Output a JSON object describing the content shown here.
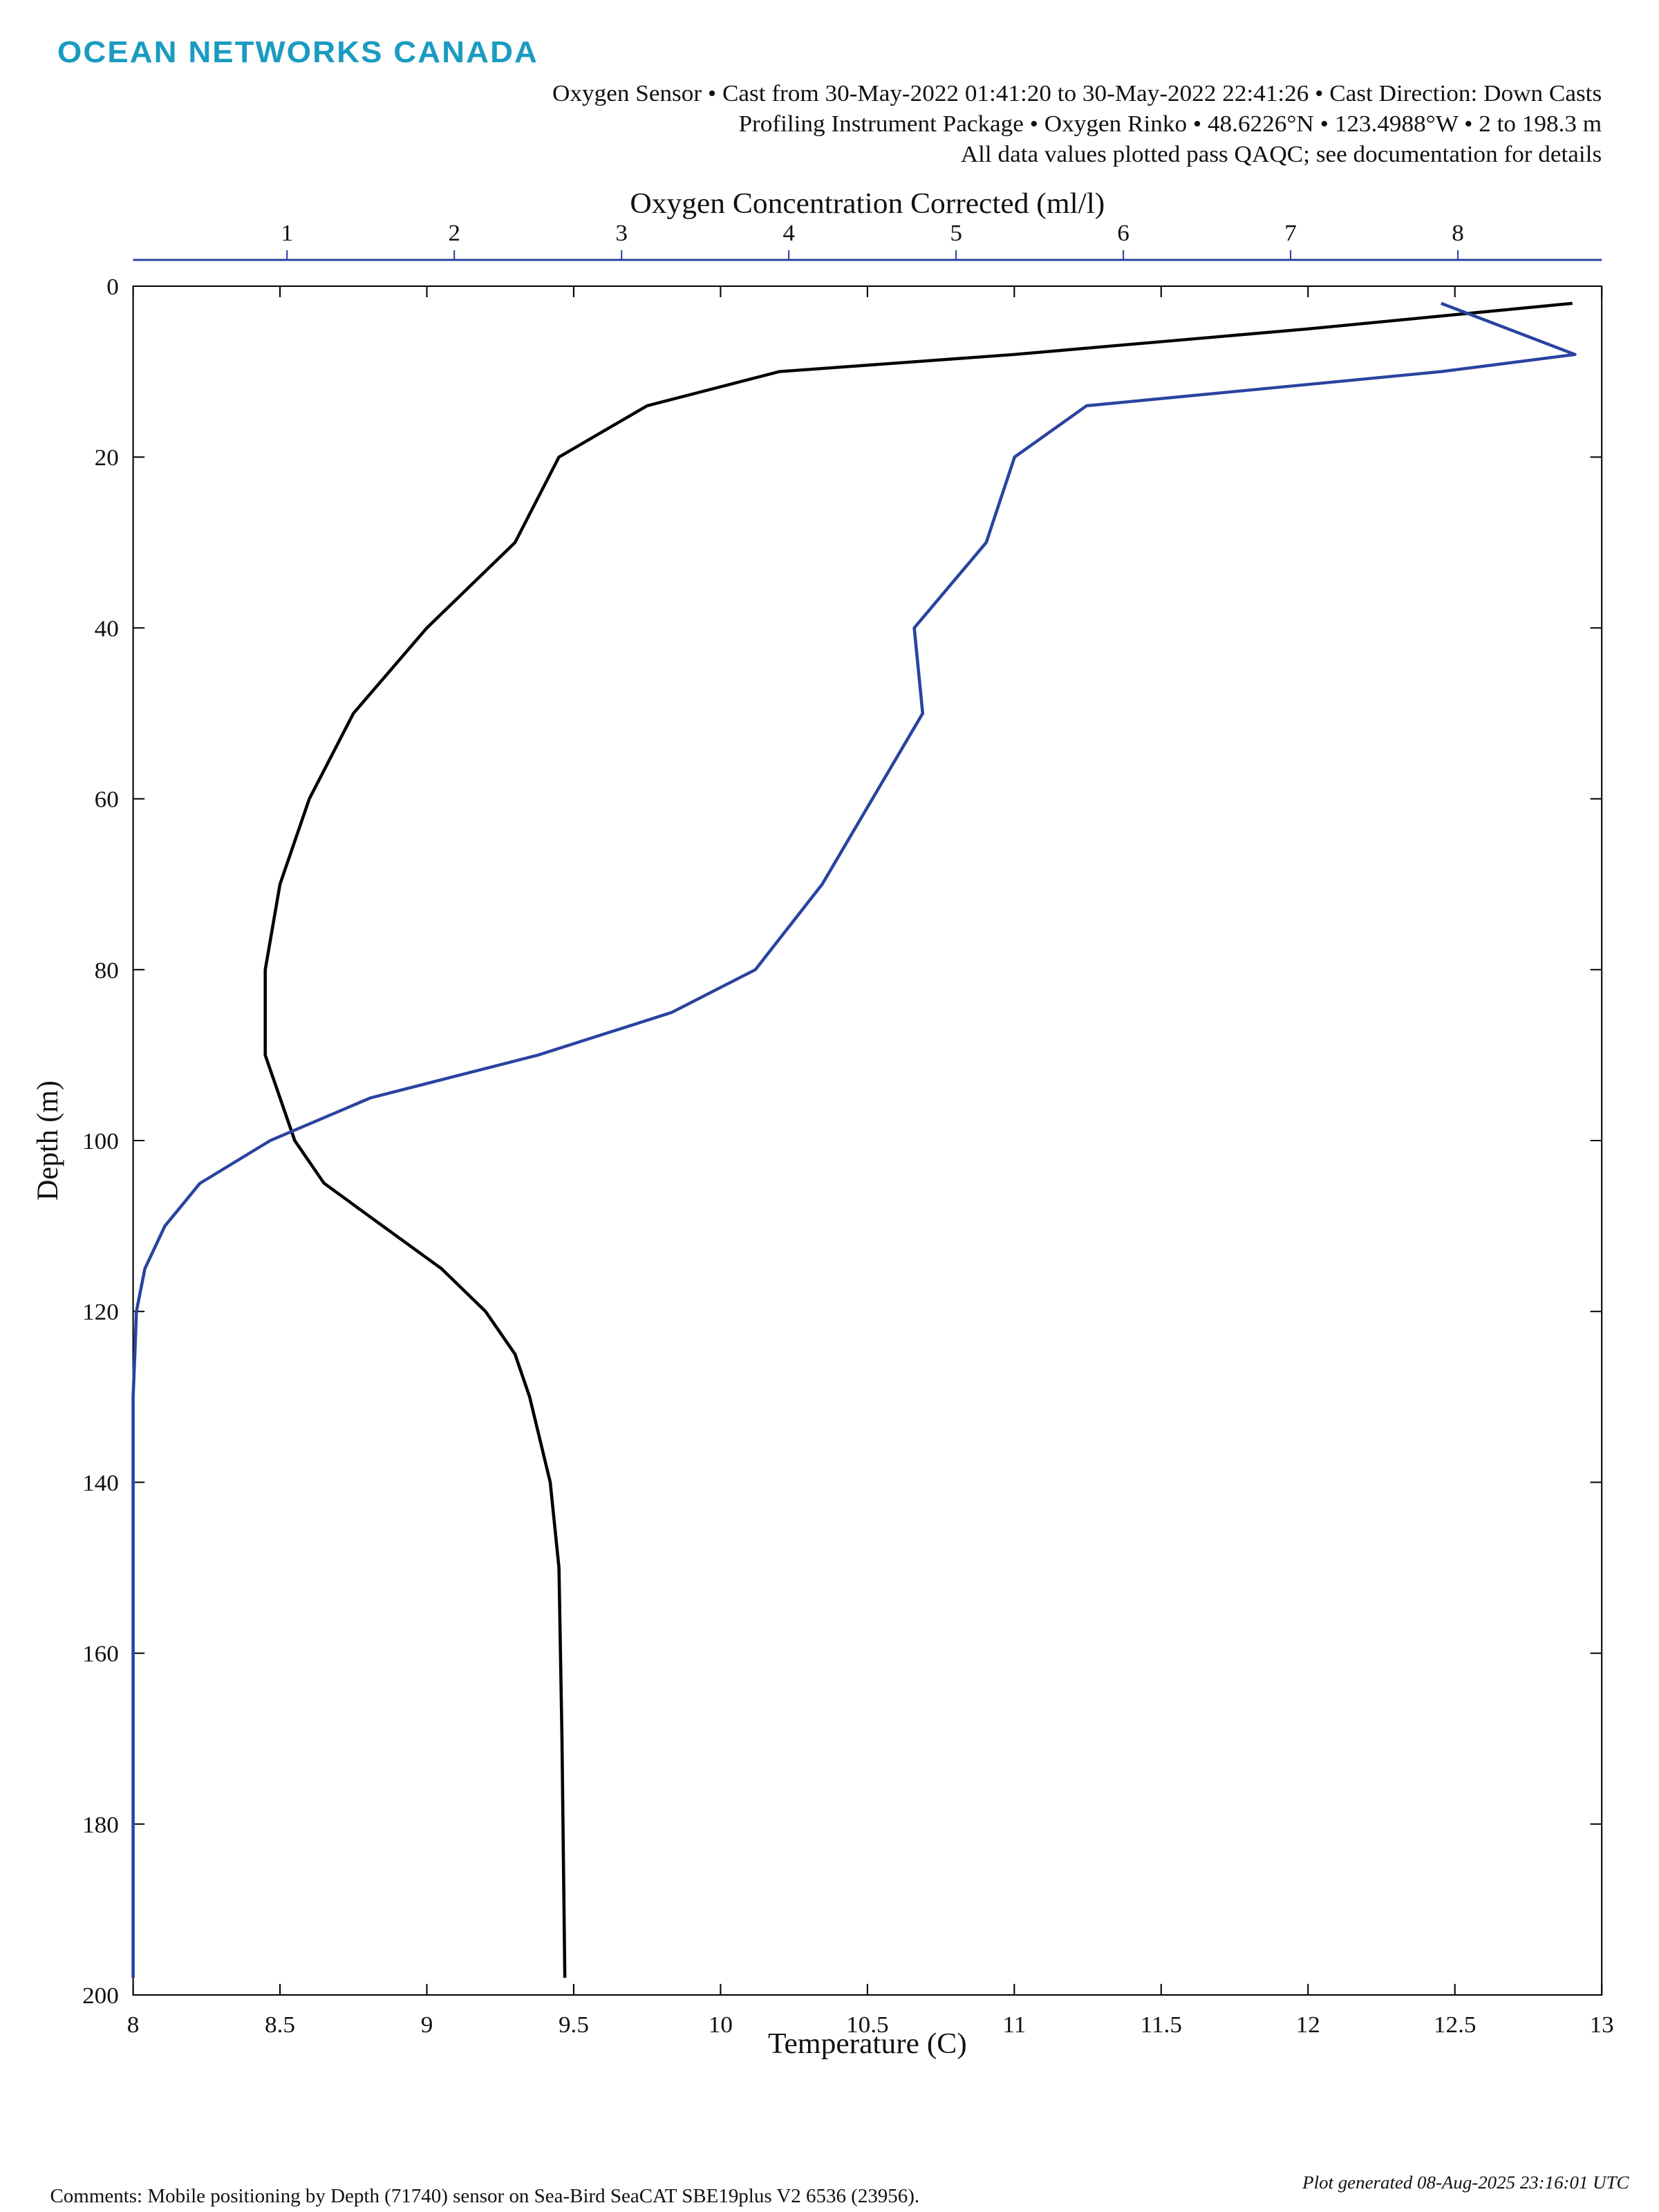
{
  "chart_data": {
    "type": "line",
    "logo": "OCEAN NETWORKS CANADA",
    "subtitle": [
      "Oxygen Sensor • Cast from 30-May-2022 01:41:20 to 30-May-2022 22:41:26 • Cast Direction: Down Casts",
      "Profiling Instrument Package • Oxygen Rinko • 48.6226°N • 123.4988°W • 2 to 198.3 m",
      "All data values plotted pass QAQC; see documentation for details"
    ],
    "x_label": "Temperature (C)",
    "x2_label": "Oxygen Concentration Corrected (ml/l)",
    "y_label": "Depth (m)",
    "footnote": "Comments: Mobile positioning by Depth (71740) sensor on Sea-Bird SeaCAT SBE19plus V2 6536 (23956).",
    "generated": "Plot generated 08-Aug-2025 23:16:01 UTC",
    "xlim": [
      8,
      13
    ],
    "xticks": [
      8,
      8.5,
      9,
      9.5,
      10,
      10.5,
      11,
      11.5,
      12,
      12.5,
      13
    ],
    "x2lim": [
      0.08,
      8.86
    ],
    "x2ticks": [
      1,
      2,
      3,
      4,
      5,
      6,
      7,
      8
    ],
    "x2_color": "#2a43a0",
    "ylim": [
      0,
      200
    ],
    "y_reversed": true,
    "yticks": [
      0,
      20,
      40,
      60,
      80,
      100,
      120,
      140,
      160,
      180,
      200
    ],
    "y": [
      2,
      5,
      8,
      10,
      14,
      20,
      30,
      40,
      50,
      60,
      70,
      80,
      85,
      90,
      95,
      100,
      105,
      110,
      115,
      120,
      125,
      130,
      140,
      150,
      170,
      198
    ],
    "series": [
      {
        "color": "#000000",
        "axis": "x",
        "values": [
          12.9,
          12.0,
          11.0,
          10.2,
          9.75,
          9.45,
          9.3,
          9.0,
          8.75,
          8.6,
          8.5,
          8.45,
          8.45,
          8.45,
          8.5,
          8.55,
          8.65,
          8.85,
          9.05,
          9.2,
          9.3,
          9.35,
          9.42,
          9.45,
          9.46,
          9.47
        ]
      },
      {
        "color": "#2a43a0",
        "axis": "x2",
        "values": [
          7.9,
          8.3,
          8.7,
          7.9,
          5.78,
          5.35,
          5.18,
          4.75,
          4.8,
          4.5,
          4.2,
          3.8,
          3.3,
          2.5,
          1.5,
          0.9,
          0.48,
          0.27,
          0.15,
          0.1,
          0.09,
          0.08,
          0.08,
          0.08,
          0.08,
          0.08
        ]
      }
    ]
  }
}
